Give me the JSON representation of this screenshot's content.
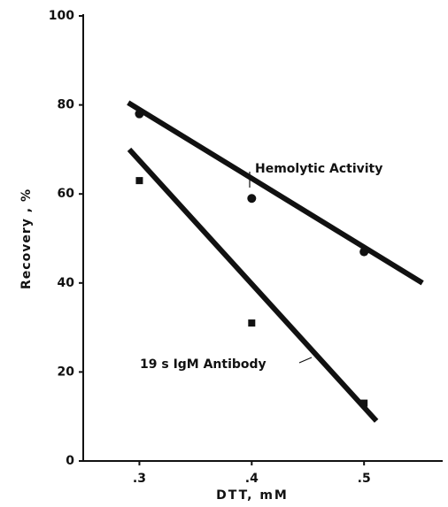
{
  "chart_data": {
    "type": "scatter",
    "xlabel": "DTT, mM",
    "ylabel": "Recovery , %",
    "xlim": [
      0.25,
      0.57
    ],
    "ylim": [
      0,
      100
    ],
    "xticks": [
      {
        "value": 0.3,
        "label": ".3"
      },
      {
        "value": 0.4,
        "label": ".4"
      },
      {
        "value": 0.5,
        "label": ".5"
      }
    ],
    "yticks": [
      0,
      20,
      40,
      60,
      80,
      100
    ],
    "series": [
      {
        "name": "Hemolytic Activity",
        "color": "#111111",
        "marker": "circle",
        "x": [
          0.3,
          0.4,
          0.5
        ],
        "values": [
          78,
          59,
          47
        ],
        "fit_x": [
          0.29,
          0.552
        ],
        "fit_values": [
          80.5,
          40
        ]
      },
      {
        "name": "19 s IgM Antibody",
        "color": "#111111",
        "marker": "square",
        "x": [
          0.3,
          0.4,
          0.5
        ],
        "values": [
          63,
          31,
          13
        ],
        "fit_x": [
          0.291,
          0.511
        ],
        "fit_values": [
          70,
          9
        ]
      }
    ]
  }
}
